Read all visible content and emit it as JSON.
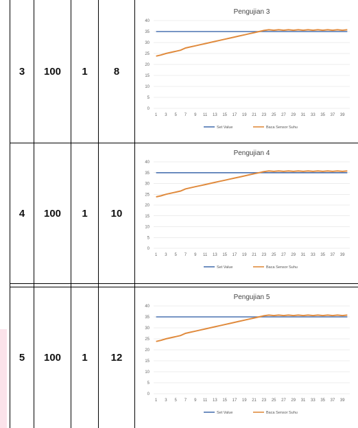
{
  "rows": [
    {
      "no": "3",
      "a": "100",
      "b": "1",
      "c": "8"
    },
    {
      "no": "4",
      "a": "100",
      "b": "1",
      "c": "10"
    },
    {
      "no": "5",
      "a": "100",
      "b": "1",
      "c": "12"
    }
  ],
  "colors": {
    "set_value": "#4a72b0",
    "sensor": "#e08a3c",
    "grid": "#dadada",
    "border": "#000000"
  },
  "chart_data": [
    {
      "type": "line",
      "title": "Pengujian 3",
      "ylim": [
        0,
        40
      ],
      "yticks": [
        "40",
        "35",
        "30",
        "25",
        "20",
        "15",
        "10",
        "5",
        "0"
      ],
      "xticks": [
        "1",
        "3",
        "5",
        "7",
        "9",
        "11",
        "13",
        "15",
        "17",
        "19",
        "21",
        "23",
        "25",
        "27",
        "29",
        "31",
        "33",
        "35",
        "37",
        "39"
      ],
      "grid": true,
      "legend_position": "bottom",
      "series": [
        {
          "name": "Set Value",
          "values": [
            35,
            35,
            35,
            35,
            35,
            35,
            35,
            35,
            35,
            35,
            35,
            35,
            35,
            35,
            35,
            35,
            35,
            35,
            35,
            35,
            35,
            35,
            35,
            35,
            35,
            35,
            35,
            35,
            35,
            35,
            35,
            35,
            35,
            35,
            35,
            35,
            35,
            35,
            35,
            35
          ]
        },
        {
          "name": "Baca Sensor Suhu",
          "values": [
            23.8,
            24.3,
            25,
            25.5,
            26,
            26.5,
            27.5,
            28,
            28.5,
            29,
            29.5,
            30,
            30.5,
            31,
            31.5,
            32,
            32.5,
            33,
            33.5,
            34,
            34.5,
            35,
            35.5,
            35.8,
            35.6,
            35.8,
            35.6,
            35.8,
            35.6,
            35.8,
            35.6,
            35.8,
            35.6,
            35.8,
            35.6,
            35.8,
            35.6,
            35.8,
            35.6,
            35.8
          ]
        }
      ]
    },
    {
      "type": "line",
      "title": "Pengujian 4",
      "ylim": [
        0,
        40
      ],
      "yticks": [
        "40",
        "35",
        "30",
        "25",
        "20",
        "15",
        "10",
        "5",
        "0"
      ],
      "xticks": [
        "1",
        "3",
        "5",
        "7",
        "9",
        "11",
        "13",
        "15",
        "17",
        "19",
        "21",
        "23",
        "25",
        "27",
        "29",
        "31",
        "33",
        "35",
        "37",
        "39"
      ],
      "grid": true,
      "legend_position": "bottom",
      "series": [
        {
          "name": "Set Value",
          "values": [
            35,
            35,
            35,
            35,
            35,
            35,
            35,
            35,
            35,
            35,
            35,
            35,
            35,
            35,
            35,
            35,
            35,
            35,
            35,
            35,
            35,
            35,
            35,
            35,
            35,
            35,
            35,
            35,
            35,
            35,
            35,
            35,
            35,
            35,
            35,
            35,
            35,
            35,
            35,
            35
          ]
        },
        {
          "name": "Baca Sensor Suhu",
          "values": [
            23.8,
            24.3,
            25,
            25.5,
            26,
            26.5,
            27.5,
            28,
            28.5,
            29,
            29.5,
            30,
            30.5,
            31,
            31.5,
            32,
            32.5,
            33,
            33.5,
            34,
            34.5,
            35,
            35.5,
            35.8,
            35.6,
            35.8,
            35.6,
            35.8,
            35.6,
            35.8,
            35.6,
            35.8,
            35.6,
            35.8,
            35.6,
            35.8,
            35.6,
            35.8,
            35.6,
            35.8
          ]
        }
      ]
    },
    {
      "type": "line",
      "title": "Pengujian 5",
      "ylim": [
        0,
        40
      ],
      "yticks": [
        "40",
        "35",
        "30",
        "25",
        "20",
        "15",
        "10",
        "5",
        "0"
      ],
      "xticks": [
        "1",
        "3",
        "5",
        "7",
        "9",
        "11",
        "13",
        "15",
        "17",
        "19",
        "21",
        "23",
        "25",
        "27",
        "29",
        "31",
        "33",
        "35",
        "37",
        "39"
      ],
      "grid": true,
      "legend_position": "bottom",
      "series": [
        {
          "name": "Set Value",
          "values": [
            35,
            35,
            35,
            35,
            35,
            35,
            35,
            35,
            35,
            35,
            35,
            35,
            35,
            35,
            35,
            35,
            35,
            35,
            35,
            35,
            35,
            35,
            35,
            35,
            35,
            35,
            35,
            35,
            35,
            35,
            35,
            35,
            35,
            35,
            35,
            35,
            35,
            35,
            35,
            35
          ]
        },
        {
          "name": "Baca Sensor Suhu",
          "values": [
            23.8,
            24.3,
            25,
            25.5,
            26,
            26.5,
            27.5,
            28,
            28.5,
            29,
            29.5,
            30,
            30.5,
            31,
            31.5,
            32,
            32.5,
            33,
            33.5,
            34,
            34.5,
            35,
            35.5,
            35.8,
            35.6,
            35.8,
            35.6,
            35.8,
            35.6,
            35.8,
            35.6,
            35.8,
            35.6,
            35.8,
            35.6,
            35.8,
            35.6,
            35.8,
            35.6,
            35.8
          ]
        }
      ]
    }
  ]
}
